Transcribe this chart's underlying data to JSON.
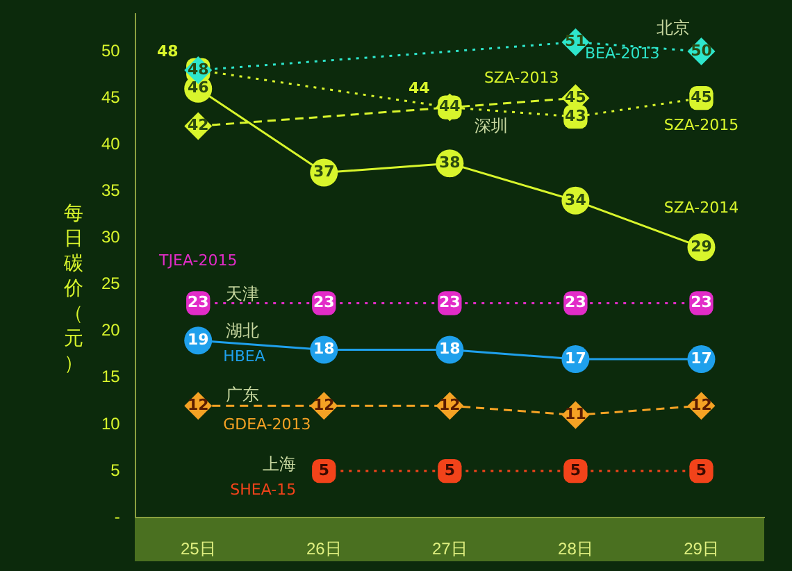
{
  "chart_data": {
    "type": "line",
    "ylabel": "每日碳价（元）",
    "categories": [
      "25日",
      "26日",
      "27日",
      "28日",
      "29日"
    ],
    "ylim": [
      0,
      54
    ],
    "yticks": [
      {
        "value": 0,
        "label": "-"
      },
      5,
      10,
      15,
      20,
      25,
      30,
      35,
      40,
      45,
      50
    ],
    "grid": false,
    "legend": false,
    "data_labels": true,
    "series": [
      {
        "name": "BEA-2013",
        "color": "#2ee6cc",
        "marker": "diamond",
        "line_style": "dotted",
        "values": [
          48,
          null,
          null,
          51,
          50
        ]
      },
      {
        "name": "SZA-2015",
        "color": "#d8f52c",
        "marker": "square",
        "line_style": "dotted",
        "values": [
          48,
          null,
          44,
          43,
          45
        ]
      },
      {
        "name": "SZA-2013",
        "color": "#d8f52c",
        "marker": "diamond",
        "line_style": "dashed",
        "values": [
          42,
          null,
          44,
          45,
          null
        ]
      },
      {
        "name": "SZA-2014",
        "color": "#d8f52c",
        "marker": "circle",
        "line_style": "solid",
        "values": [
          46,
          37,
          38,
          34,
          29
        ]
      },
      {
        "name": "TJEA-2015",
        "color": "#e22cc8",
        "marker": "square",
        "line_style": "dotted",
        "values": [
          23,
          23,
          23,
          23,
          23
        ]
      },
      {
        "name": "HBEA",
        "color": "#1fa0ec",
        "marker": "circle",
        "line_style": "solid",
        "values": [
          19,
          18,
          18,
          17,
          17
        ]
      },
      {
        "name": "GDEA-2013",
        "color": "#f5a224",
        "marker": "diamond",
        "line_style": "dashed",
        "values": [
          12,
          12,
          12,
          11,
          12
        ]
      },
      {
        "name": "SHEA-15",
        "color": "#f2431a",
        "marker": "square",
        "line_style": "dotted",
        "values": [
          null,
          5,
          5,
          5,
          5
        ]
      }
    ],
    "annotations": [
      {
        "text": "北京",
        "x": "29日",
        "y": 50
      },
      {
        "text": "深圳",
        "x": "27日",
        "y": 44
      },
      {
        "text": "天津",
        "x": "25日",
        "y": 23
      },
      {
        "text": "湖北",
        "x": "25日",
        "y": 19
      },
      {
        "text": "广东",
        "x": "25日",
        "y": 12
      },
      {
        "text": "上海",
        "x": "26日",
        "y": 5
      }
    ]
  }
}
